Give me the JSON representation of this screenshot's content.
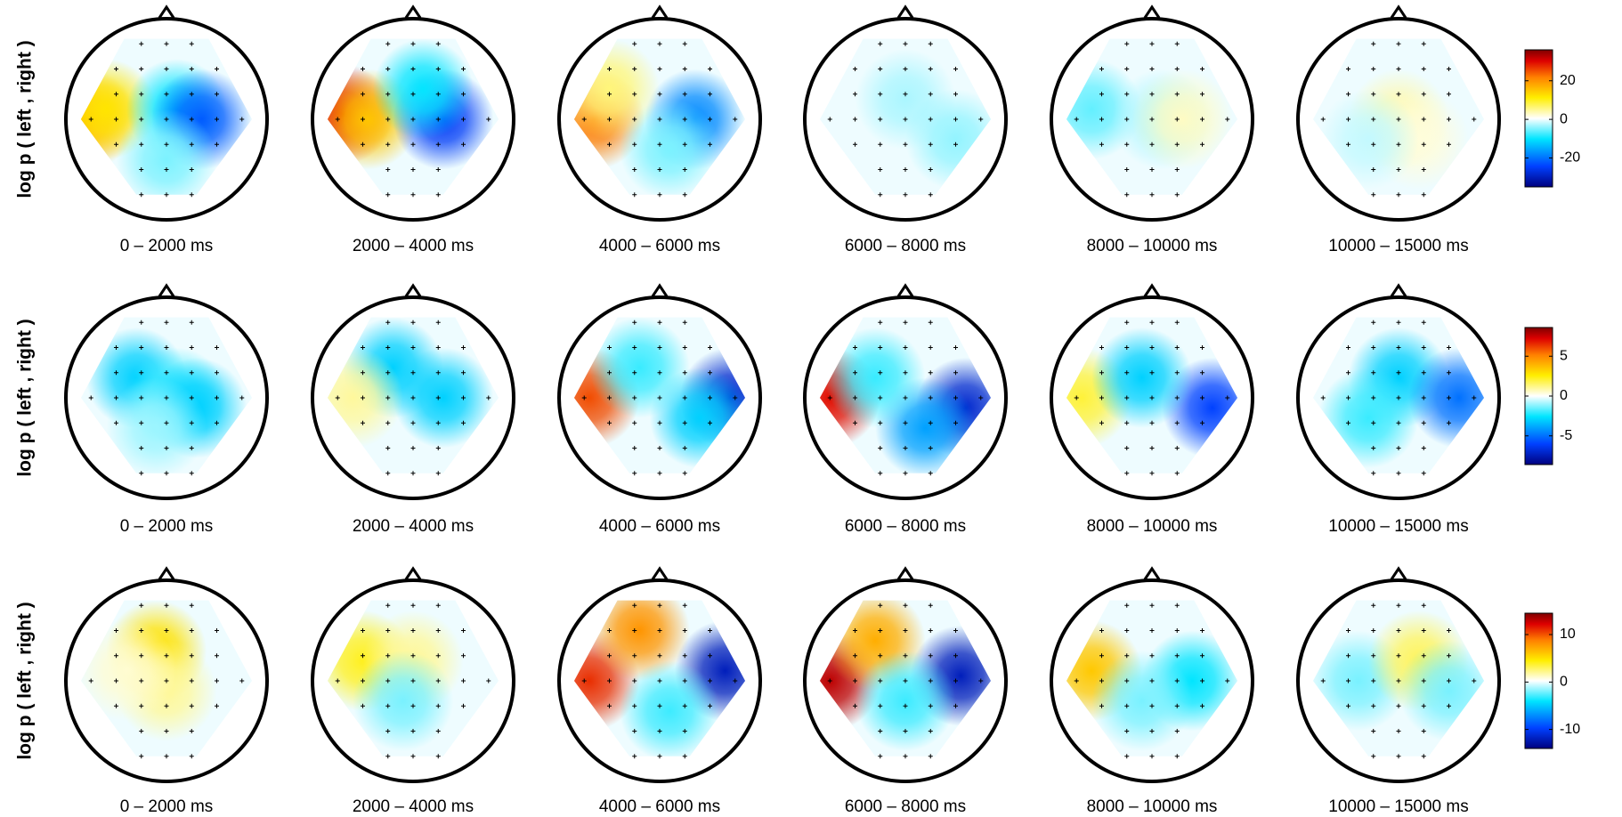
{
  "chart_data": [
    {
      "type": "topoplot",
      "ylabel": "log p ( left , right )",
      "ylim": [
        -35,
        36
      ],
      "yticks": [
        -20,
        0,
        20
      ],
      "panels": [
        {
          "title": "0 – 2000 ms",
          "sources": [
            {
              "x": -0.8,
              "y": 0,
              "value": 18
            },
            {
              "x": -0.6,
              "y": 0.1,
              "value": 12
            },
            {
              "x": 0.1,
              "y": 0.1,
              "value": -10
            },
            {
              "x": 0.35,
              "y": 0,
              "value": -22
            },
            {
              "x": 0,
              "y": -0.4,
              "value": -5
            }
          ]
        },
        {
          "title": "2000 – 4000 ms",
          "sources": [
            {
              "x": -0.7,
              "y": 0.05,
              "value": 30
            },
            {
              "x": -0.45,
              "y": 0,
              "value": 15
            },
            {
              "x": 0.3,
              "y": 0,
              "value": -25
            },
            {
              "x": 0.1,
              "y": 0.3,
              "value": -10
            }
          ]
        },
        {
          "title": "4000 – 6000 ms",
          "sources": [
            {
              "x": -0.65,
              "y": 0,
              "value": 22
            },
            {
              "x": 0.35,
              "y": 0,
              "value": -18
            },
            {
              "x": 0.1,
              "y": -0.3,
              "value": -5
            },
            {
              "x": -0.5,
              "y": 0.3,
              "value": 6
            }
          ]
        },
        {
          "title": "6000 – 8000 ms",
          "sources": [
            {
              "x": 0,
              "y": 0.2,
              "value": -3
            },
            {
              "x": 0.5,
              "y": -0.2,
              "value": -4
            }
          ]
        },
        {
          "title": "8000 – 10000 ms",
          "sources": [
            {
              "x": -0.6,
              "y": 0.1,
              "value": -6
            },
            {
              "x": 0.1,
              "y": 0,
              "value": -3
            },
            {
              "x": 0.3,
              "y": 0,
              "value": 3
            }
          ]
        },
        {
          "title": "10000 – 15000 ms",
          "sources": [
            {
              "x": 0,
              "y": 0,
              "value": 4
            },
            {
              "x": 0.2,
              "y": -0.2,
              "value": 2
            },
            {
              "x": -0.3,
              "y": -0.2,
              "value": -2
            }
          ]
        }
      ]
    },
    {
      "type": "topoplot",
      "ylabel": "log p ( left , right )",
      "ylim": [
        -8.6,
        8.6
      ],
      "yticks": [
        -5,
        0,
        5
      ],
      "panels": [
        {
          "title": "0 – 2000 ms",
          "sources": [
            {
              "x": -0.3,
              "y": 0.2,
              "value": -3
            },
            {
              "x": 0.1,
              "y": 0,
              "value": -2
            },
            {
              "x": 0.3,
              "y": -0.1,
              "value": -3
            },
            {
              "x": -0.1,
              "y": -0.3,
              "value": -1
            }
          ]
        },
        {
          "title": "2000 – 4000 ms",
          "sources": [
            {
              "x": -0.2,
              "y": 0.3,
              "value": -3
            },
            {
              "x": 0.3,
              "y": 0,
              "value": -3
            },
            {
              "x": -0.6,
              "y": 0,
              "value": 1
            }
          ]
        },
        {
          "title": "4000 – 6000 ms",
          "sources": [
            {
              "x": -0.7,
              "y": 0,
              "value": 6
            },
            {
              "x": 0.7,
              "y": 0,
              "value": -7
            },
            {
              "x": 0.4,
              "y": -0.2,
              "value": -3
            },
            {
              "x": -0.2,
              "y": 0.3,
              "value": -2
            }
          ]
        },
        {
          "title": "6000 – 8000 ms",
          "sources": [
            {
              "x": -0.75,
              "y": 0,
              "value": 7
            },
            {
              "x": 0.6,
              "y": -0.1,
              "value": -7
            },
            {
              "x": 0.2,
              "y": -0.3,
              "value": -4
            },
            {
              "x": -0.3,
              "y": 0.2,
              "value": -2
            }
          ]
        },
        {
          "title": "8000 – 10000 ms",
          "sources": [
            {
              "x": -0.7,
              "y": 0,
              "value": 2
            },
            {
              "x": 0.6,
              "y": -0.1,
              "value": -6
            },
            {
              "x": -0.1,
              "y": 0.2,
              "value": -3
            }
          ]
        },
        {
          "title": "10000 – 15000 ms",
          "sources": [
            {
              "x": 0,
              "y": 0.2,
              "value": -3
            },
            {
              "x": 0.6,
              "y": 0,
              "value": -5
            },
            {
              "x": -0.3,
              "y": -0.2,
              "value": -2
            }
          ]
        }
      ]
    },
    {
      "type": "topoplot",
      "ylabel": "log p ( left , right )",
      "ylim": [
        -14,
        14.5
      ],
      "yticks": [
        -10,
        0,
        10
      ],
      "panels": [
        {
          "title": "0 – 2000 ms",
          "sources": [
            {
              "x": -0.1,
              "y": 0.3,
              "value": 5
            },
            {
              "x": 0,
              "y": -0.1,
              "value": 2
            },
            {
              "x": -0.4,
              "y": 0.1,
              "value": 1
            }
          ]
        },
        {
          "title": "2000 – 4000 ms",
          "sources": [
            {
              "x": -0.5,
              "y": 0.2,
              "value": 4
            },
            {
              "x": 0,
              "y": 0.2,
              "value": 2
            },
            {
              "x": -0.1,
              "y": -0.2,
              "value": -2
            }
          ]
        },
        {
          "title": "4000 – 6000 ms",
          "sources": [
            {
              "x": -0.7,
              "y": 0,
              "value": 11
            },
            {
              "x": -0.2,
              "y": 0.5,
              "value": 8
            },
            {
              "x": 0.65,
              "y": 0.1,
              "value": -12
            },
            {
              "x": 0.1,
              "y": -0.3,
              "value": -3
            }
          ]
        },
        {
          "title": "6000 – 8000 ms",
          "sources": [
            {
              "x": -0.75,
              "y": 0,
              "value": 13
            },
            {
              "x": -0.3,
              "y": 0.4,
              "value": 7
            },
            {
              "x": 0.55,
              "y": 0.05,
              "value": -12
            },
            {
              "x": 0,
              "y": -0.2,
              "value": -3
            }
          ]
        },
        {
          "title": "8000 – 10000 ms",
          "sources": [
            {
              "x": -0.6,
              "y": 0.1,
              "value": 6
            },
            {
              "x": 0.4,
              "y": 0,
              "value": -4
            },
            {
              "x": -0.1,
              "y": -0.2,
              "value": -2
            }
          ]
        },
        {
          "title": "10000 – 15000 ms",
          "sources": [
            {
              "x": -0.4,
              "y": 0,
              "value": -2
            },
            {
              "x": 0.2,
              "y": 0.2,
              "value": 3
            },
            {
              "x": 0.5,
              "y": -0.1,
              "value": -2
            }
          ]
        }
      ]
    }
  ]
}
